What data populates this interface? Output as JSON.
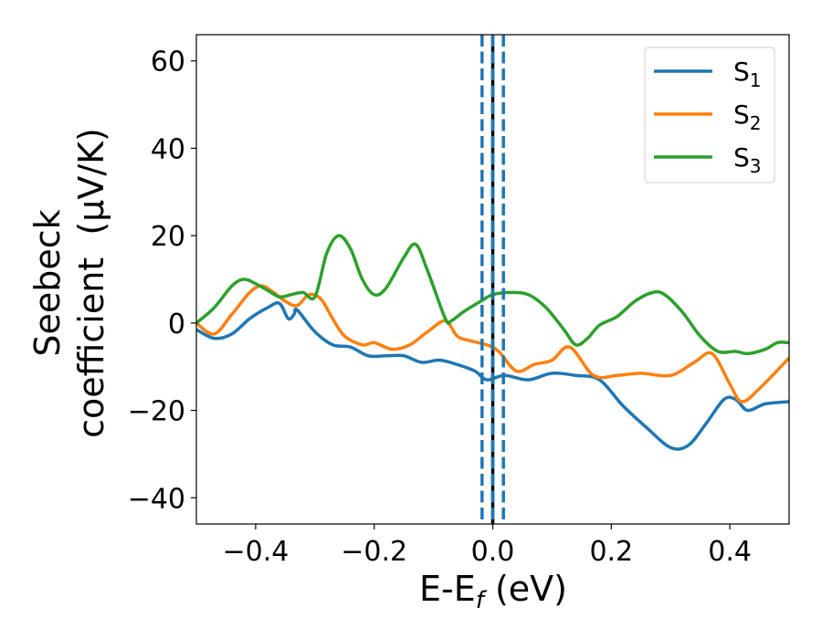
{
  "chart_data": {
    "type": "line",
    "xlabel": {
      "main": "E-E",
      "sub": "f",
      "suffix": " (eV)"
    },
    "ylabel": {
      "line1": "Seebeck",
      "line2": "coefficient  (μV/K)"
    },
    "xlim": [
      -0.5,
      0.5
    ],
    "ylim": [
      -46,
      66
    ],
    "xticks": [
      -0.4,
      -0.2,
      0.0,
      0.2,
      0.4
    ],
    "xtick_labels": [
      "−0.4",
      "−0.2",
      "0.0",
      "0.2",
      "0.4"
    ],
    "yticks": [
      -40,
      -20,
      0,
      20,
      40,
      60
    ],
    "ytick_labels": [
      "−40",
      "−20",
      "0",
      "20",
      "40",
      "60"
    ],
    "legend_position": "top-right",
    "vlines": [
      {
        "x": 0.0,
        "color": "#000000",
        "style": "solid"
      },
      {
        "x": -0.018,
        "color": "#1f77b4",
        "style": "dashed"
      },
      {
        "x": 0.0,
        "color": "#1f77b4",
        "style": "dashed"
      },
      {
        "x": 0.018,
        "color": "#1f77b4",
        "style": "dashed"
      }
    ],
    "series": [
      {
        "name": "S",
        "sub": "1",
        "color": "#1f77b4",
        "points": [
          [
            -0.5,
            -1.5
          ],
          [
            -0.47,
            -3.5
          ],
          [
            -0.44,
            -2.5
          ],
          [
            -0.41,
            1
          ],
          [
            -0.38,
            3.5
          ],
          [
            -0.36,
            4.5
          ],
          [
            -0.345,
            1
          ],
          [
            -0.335,
            2
          ],
          [
            -0.33,
            3
          ],
          [
            -0.3,
            -2
          ],
          [
            -0.27,
            -5
          ],
          [
            -0.24,
            -5.5
          ],
          [
            -0.21,
            -7.5
          ],
          [
            -0.18,
            -7.5
          ],
          [
            -0.15,
            -7.5
          ],
          [
            -0.12,
            -9
          ],
          [
            -0.09,
            -8.5
          ],
          [
            -0.06,
            -9.5
          ],
          [
            -0.03,
            -11
          ],
          [
            -0.01,
            -13
          ],
          [
            0.02,
            -12
          ],
          [
            0.06,
            -13
          ],
          [
            0.1,
            -11.5
          ],
          [
            0.14,
            -12
          ],
          [
            0.18,
            -13
          ],
          [
            0.22,
            -19
          ],
          [
            0.26,
            -24
          ],
          [
            0.3,
            -28.5
          ],
          [
            0.33,
            -28
          ],
          [
            0.36,
            -23
          ],
          [
            0.39,
            -17.5
          ],
          [
            0.41,
            -17.5
          ],
          [
            0.43,
            -20
          ],
          [
            0.46,
            -18.5
          ],
          [
            0.5,
            -18
          ]
        ]
      },
      {
        "name": "S",
        "sub": "2",
        "color": "#ff7f0e",
        "points": [
          [
            -0.5,
            0
          ],
          [
            -0.47,
            -2.5
          ],
          [
            -0.44,
            2
          ],
          [
            -0.41,
            7
          ],
          [
            -0.39,
            8.5
          ],
          [
            -0.37,
            7
          ],
          [
            -0.35,
            5
          ],
          [
            -0.33,
            4
          ],
          [
            -0.31,
            6.5
          ],
          [
            -0.29,
            5.5
          ],
          [
            -0.27,
            1
          ],
          [
            -0.25,
            -3
          ],
          [
            -0.22,
            -5
          ],
          [
            -0.2,
            -4.5
          ],
          [
            -0.17,
            -6
          ],
          [
            -0.14,
            -5
          ],
          [
            -0.11,
            -2
          ],
          [
            -0.08,
            0.5
          ],
          [
            -0.06,
            -3
          ],
          [
            -0.04,
            -4
          ],
          [
            -0.01,
            -5
          ],
          [
            0.01,
            -6.5
          ],
          [
            0.04,
            -11
          ],
          [
            0.07,
            -9.5
          ],
          [
            0.1,
            -8.5
          ],
          [
            0.13,
            -5.5
          ],
          [
            0.17,
            -12
          ],
          [
            0.21,
            -12
          ],
          [
            0.25,
            -11.5
          ],
          [
            0.3,
            -12
          ],
          [
            0.34,
            -9
          ],
          [
            0.37,
            -7
          ],
          [
            0.4,
            -14
          ],
          [
            0.42,
            -18
          ],
          [
            0.45,
            -15
          ],
          [
            0.5,
            -8
          ]
        ]
      },
      {
        "name": "S",
        "sub": "3",
        "color": "#2ca02c",
        "points": [
          [
            -0.5,
            0
          ],
          [
            -0.47,
            3.5
          ],
          [
            -0.44,
            8.5
          ],
          [
            -0.42,
            10
          ],
          [
            -0.4,
            9
          ],
          [
            -0.38,
            7.5
          ],
          [
            -0.36,
            6
          ],
          [
            -0.34,
            6.5
          ],
          [
            -0.32,
            7
          ],
          [
            -0.3,
            6
          ],
          [
            -0.28,
            16
          ],
          [
            -0.26,
            20
          ],
          [
            -0.24,
            17
          ],
          [
            -0.22,
            10
          ],
          [
            -0.2,
            6.5
          ],
          [
            -0.18,
            8
          ],
          [
            -0.15,
            15
          ],
          [
            -0.13,
            18
          ],
          [
            -0.11,
            12
          ],
          [
            -0.08,
            1
          ],
          [
            -0.07,
            0.5
          ],
          [
            -0.05,
            2.5
          ],
          [
            -0.02,
            5
          ],
          [
            0.0,
            6.5
          ],
          [
            0.03,
            7
          ],
          [
            0.06,
            6.5
          ],
          [
            0.09,
            3.5
          ],
          [
            0.12,
            -1.5
          ],
          [
            0.14,
            -5
          ],
          [
            0.16,
            -3.5
          ],
          [
            0.18,
            -0.5
          ],
          [
            0.21,
            1.5
          ],
          [
            0.24,
            5
          ],
          [
            0.27,
            7
          ],
          [
            0.29,
            6.5
          ],
          [
            0.32,
            2.5
          ],
          [
            0.35,
            -3
          ],
          [
            0.38,
            -6.5
          ],
          [
            0.41,
            -6.5
          ],
          [
            0.43,
            -7
          ],
          [
            0.46,
            -6
          ],
          [
            0.48,
            -4.5
          ],
          [
            0.5,
            -4.5
          ]
        ]
      }
    ]
  }
}
